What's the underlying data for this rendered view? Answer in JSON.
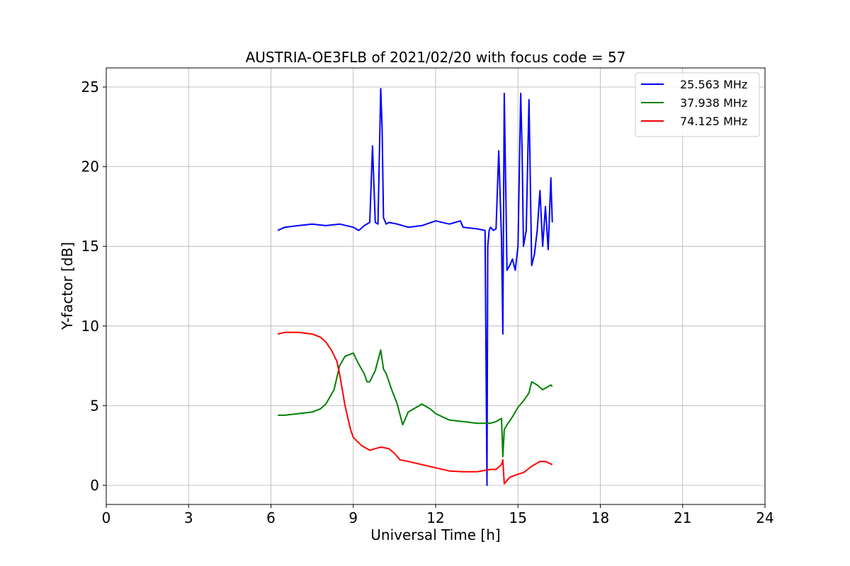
{
  "chart_data": {
    "type": "line",
    "title": "AUSTRIA-OE3FLB of 2021/02/20 with focus code = 57",
    "xlabel": "Universal Time [h]",
    "ylabel": "Y-factor [dB]",
    "xlim": [
      0,
      24
    ],
    "ylim": [
      -1.2,
      26.2
    ],
    "xticks": [
      0,
      3,
      6,
      9,
      12,
      15,
      18,
      21,
      24
    ],
    "yticks": [
      0,
      5,
      10,
      15,
      20,
      25
    ],
    "grid": true,
    "legend_position": "top-right",
    "series": [
      {
        "name": "25.563 MHz",
        "color": "#0000ff",
        "x": [
          6.25,
          6.5,
          7.0,
          7.5,
          8.0,
          8.5,
          9.0,
          9.2,
          9.4,
          9.6,
          9.7,
          9.8,
          9.9,
          10.0,
          10.05,
          10.1,
          10.2,
          10.3,
          10.6,
          11.0,
          11.5,
          12.0,
          12.5,
          12.9,
          13.0,
          13.5,
          13.8,
          13.87,
          13.9,
          13.95,
          14.0,
          14.1,
          14.2,
          14.3,
          14.4,
          14.45,
          14.5,
          14.6,
          14.7,
          14.8,
          14.9,
          15.0,
          15.1,
          15.15,
          15.2,
          15.3,
          15.4,
          15.5,
          15.6,
          15.7,
          15.8,
          15.9,
          16.0,
          16.1,
          16.2,
          16.25
        ],
        "y": [
          16.0,
          16.2,
          16.3,
          16.4,
          16.3,
          16.4,
          16.2,
          16.0,
          16.3,
          16.5,
          21.3,
          16.5,
          16.4,
          24.9,
          22.5,
          16.8,
          16.4,
          16.5,
          16.4,
          16.2,
          16.3,
          16.6,
          16.4,
          16.6,
          16.2,
          16.1,
          16.0,
          0.0,
          15.0,
          16.0,
          16.2,
          16.0,
          16.1,
          21.0,
          15.5,
          9.5,
          24.6,
          13.5,
          13.8,
          14.2,
          13.5,
          15.0,
          24.6,
          21.0,
          15.0,
          16.0,
          24.2,
          13.8,
          14.5,
          16.0,
          18.5,
          15.0,
          17.5,
          14.8,
          19.3,
          16.5
        ]
      },
      {
        "name": "37.938 MHz",
        "color": "#008000",
        "x": [
          6.25,
          6.5,
          7.0,
          7.5,
          7.8,
          8.0,
          8.3,
          8.5,
          8.7,
          9.0,
          9.2,
          9.4,
          9.5,
          9.6,
          9.8,
          10.0,
          10.1,
          10.2,
          10.4,
          10.6,
          10.8,
          11.0,
          11.2,
          11.5,
          11.8,
          12.0,
          12.5,
          13.0,
          13.5,
          14.0,
          14.2,
          14.4,
          14.45,
          14.5,
          14.6,
          14.8,
          15.0,
          15.2,
          15.4,
          15.5,
          15.7,
          15.9,
          16.0,
          16.2,
          16.25
        ],
        "y": [
          4.4,
          4.4,
          4.5,
          4.6,
          4.8,
          5.1,
          6.0,
          7.5,
          8.1,
          8.3,
          7.6,
          7.0,
          6.5,
          6.5,
          7.2,
          8.5,
          7.3,
          7.0,
          6.0,
          5.1,
          3.8,
          4.6,
          4.8,
          5.1,
          4.8,
          4.5,
          4.1,
          4.0,
          3.9,
          3.9,
          4.0,
          4.2,
          1.8,
          3.5,
          3.8,
          4.3,
          4.9,
          5.3,
          5.8,
          6.5,
          6.3,
          6.0,
          6.1,
          6.3,
          6.2
        ]
      },
      {
        "name": "74.125 MHz",
        "color": "#ff0000",
        "x": [
          6.25,
          6.5,
          7.0,
          7.5,
          7.8,
          8.0,
          8.2,
          8.4,
          8.5,
          8.7,
          8.9,
          9.0,
          9.3,
          9.6,
          10.0,
          10.3,
          10.5,
          10.7,
          11.0,
          11.5,
          12.0,
          12.5,
          13.0,
          13.5,
          14.0,
          14.2,
          14.4,
          14.45,
          14.5,
          14.7,
          15.0,
          15.2,
          15.5,
          15.8,
          16.0,
          16.25
        ],
        "y": [
          9.5,
          9.6,
          9.6,
          9.5,
          9.3,
          9.0,
          8.5,
          7.8,
          7.0,
          5.0,
          3.5,
          3.0,
          2.5,
          2.2,
          2.4,
          2.3,
          2.0,
          1.6,
          1.5,
          1.3,
          1.1,
          0.9,
          0.85,
          0.85,
          1.0,
          1.0,
          1.3,
          1.6,
          0.1,
          0.5,
          0.7,
          0.8,
          1.2,
          1.5,
          1.5,
          1.3
        ]
      }
    ]
  }
}
